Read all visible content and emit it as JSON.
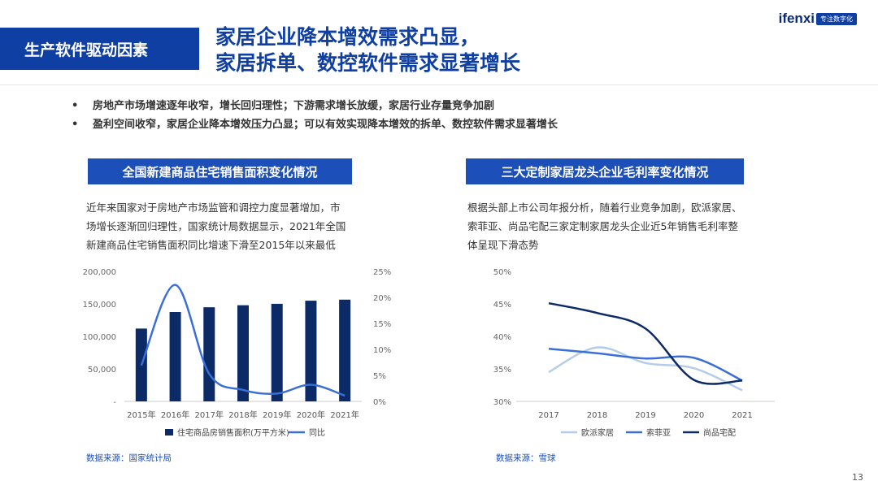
{
  "header": {
    "section_tag": "生产软件驱动因素",
    "title_line1": "家居企业降本增效需求凸显，",
    "title_line2": "家居拆单、数控软件需求显著增长",
    "logo_text": "ifenxi",
    "logo_badge": "专注数字化"
  },
  "bullets": [
    "房地产市场增速逐年收窄，增长回归理性；下游需求增长放缓，家居行业存量竞争加剧",
    "盈利空间收窄，家居企业降本增效压力凸显；可以有效实现降本增效的拆单、数控软件需求显著增长"
  ],
  "left": {
    "title": "全国新建商品住宅销售面积变化情况",
    "description": [
      "近年来国家对于房地产市场监管和调控力度显著增加，市",
      "场增长逐渐回归理性，国家统计局数据显示，2021年全国",
      "新建商品住宅销售面积同比增速下滑至2015年以来最低"
    ],
    "source": "数据来源：国家统计局"
  },
  "right": {
    "title": "三大定制家居龙头企业毛利率变化情况",
    "description": [
      "根据头部上市公司年报分析，随着行业竞争加剧，欧派家居、",
      "索菲亚、尚品宅配三家定制家居龙头企业近5年销售毛利率整",
      "体呈现下滑态势"
    ],
    "source": "数据来源：雪球"
  },
  "page_number": "13",
  "colors": {
    "primary": "#0f3fa3",
    "bar": "#0b2a66",
    "line": "#3a6fd8",
    "light": "#b3cce8"
  },
  "chart_data": [
    {
      "type": "bar",
      "categories": [
        "2015年",
        "2016年",
        "2017年",
        "2018年",
        "2019年",
        "2020年",
        "2021年"
      ],
      "series": [
        {
          "name": "住宅商品房销售面积(万平方米)",
          "type": "bar",
          "axis": "left",
          "values": [
            112000,
            137500,
            144800,
            147900,
            150100,
            154900,
            156500
          ]
        },
        {
          "name": "同比",
          "type": "line",
          "axis": "right",
          "values": [
            6.9,
            22.4,
            5.3,
            2.2,
            1.5,
            3.2,
            1.1
          ]
        }
      ],
      "y_left": {
        "range": [
          0,
          200000
        ],
        "ticks": [
          "-",
          "50,000",
          "100,000",
          "150,000",
          "200,000"
        ]
      },
      "y_right": {
        "range": [
          0,
          25
        ],
        "ticks": [
          "0%",
          "5%",
          "10%",
          "15%",
          "20%",
          "25%"
        ]
      },
      "legend": "bottom"
    },
    {
      "type": "line",
      "categories": [
        "2017",
        "2018",
        "2019",
        "2020",
        "2021"
      ],
      "series": [
        {
          "name": "欧派家居",
          "values": [
            34.5,
            38.3,
            35.9,
            35.1,
            31.7
          ]
        },
        {
          "name": "索菲亚",
          "values": [
            38.1,
            37.4,
            36.6,
            36.7,
            33.2
          ]
        },
        {
          "name": "尚品宅配",
          "values": [
            45.1,
            43.6,
            41.2,
            33.3,
            33.2
          ]
        }
      ],
      "y": {
        "range": [
          30,
          50
        ],
        "ticks": [
          "30%",
          "35%",
          "40%",
          "45%",
          "50%"
        ]
      },
      "legend": "bottom"
    }
  ]
}
